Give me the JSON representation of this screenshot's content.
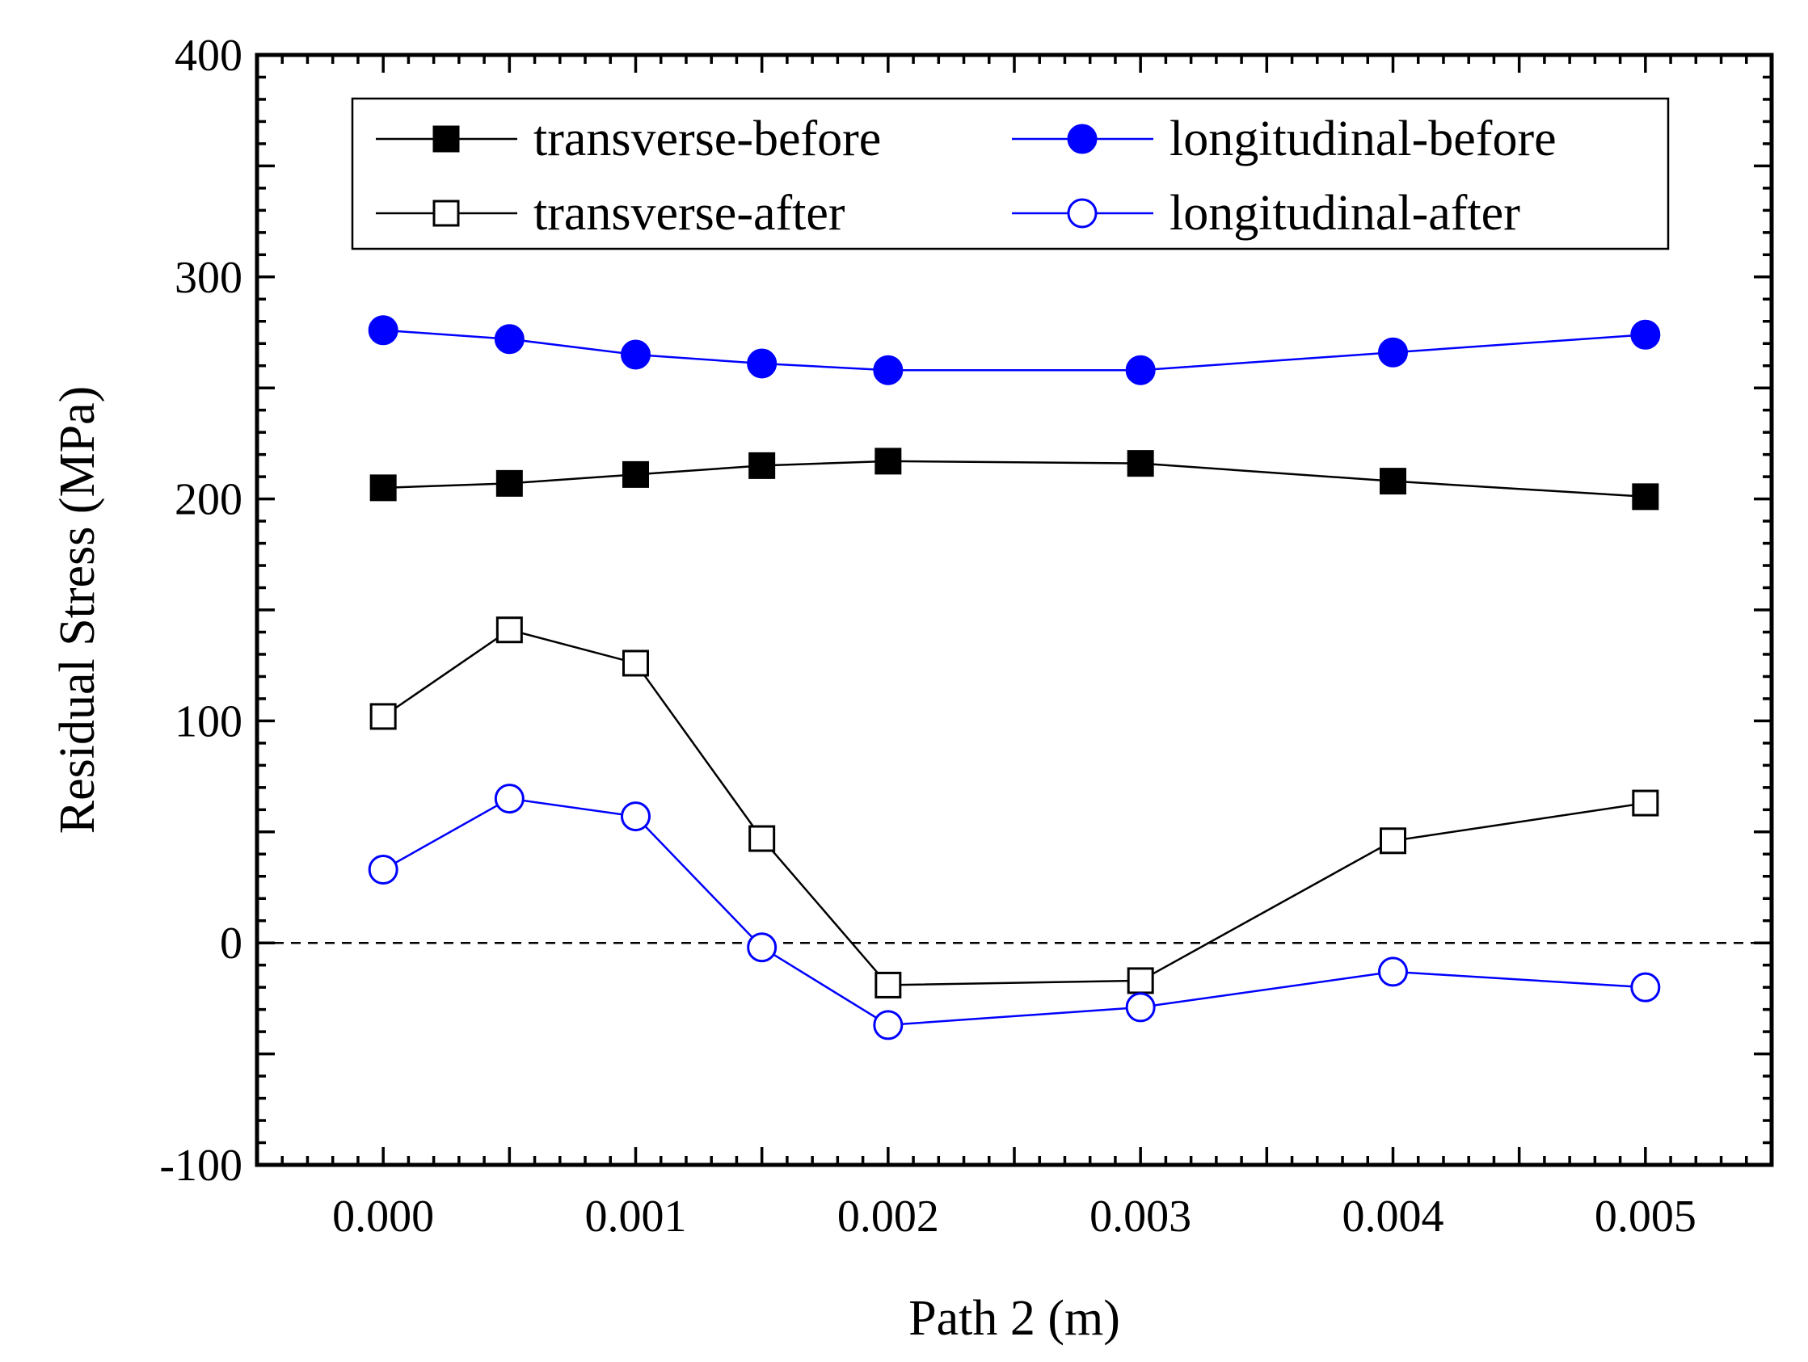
{
  "chart_data": {
    "type": "line",
    "title": "",
    "xlabel": "Path 2 (m)",
    "ylabel": "Residual Stress (MPa)",
    "xlim": [
      -0.0005,
      0.0055
    ],
    "ylim": [
      -100,
      400
    ],
    "xticks": [
      0.0,
      0.001,
      0.002,
      0.003,
      0.004,
      0.005
    ],
    "xtick_labels": [
      "0.000",
      "0.001",
      "0.002",
      "0.003",
      "0.004",
      "0.005"
    ],
    "yticks": [
      -100,
      0,
      100,
      200,
      300,
      400
    ],
    "ytick_labels": [
      "-100",
      "0",
      "100",
      "200",
      "300",
      "400"
    ],
    "x": [
      0.0,
      0.0005,
      0.001,
      0.0015,
      0.002,
      0.003,
      0.004,
      0.005
    ],
    "reference_line": {
      "y": 0,
      "style": "dashed"
    },
    "legend_position": "top",
    "series": [
      {
        "name": "transverse-before",
        "color": "#000000",
        "marker": "square",
        "filled": true,
        "values": [
          205,
          207,
          211,
          215,
          217,
          216,
          208,
          201
        ]
      },
      {
        "name": "longitudinal-before",
        "color": "#0000ff",
        "marker": "circle",
        "filled": true,
        "values": [
          276,
          272,
          265,
          261,
          258,
          258,
          266,
          274
        ]
      },
      {
        "name": "transverse-after",
        "color": "#000000",
        "marker": "square",
        "filled": false,
        "values": [
          102,
          141,
          126,
          47,
          -19,
          -17,
          46,
          63
        ]
      },
      {
        "name": "longitudinal-after",
        "color": "#0000ff",
        "marker": "circle",
        "filled": false,
        "values": [
          33,
          65,
          57,
          -2,
          -37,
          -29,
          -13,
          -20
        ]
      }
    ]
  }
}
